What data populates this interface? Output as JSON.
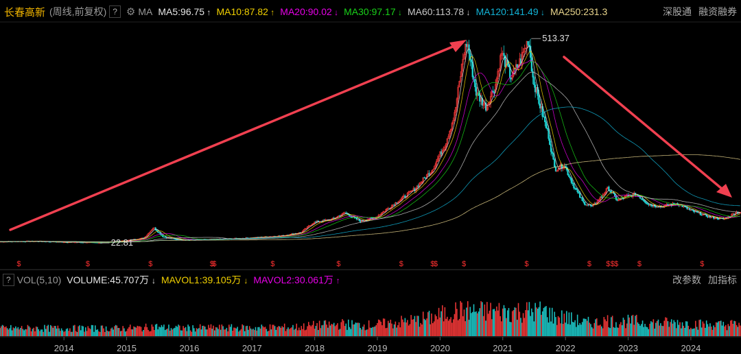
{
  "header": {
    "stock_name": "长春高新",
    "period": "(周线,前复权)",
    "help": "?",
    "ma_label": "MA",
    "ma_values": [
      {
        "label": "MA5:96.75",
        "arrow": "↑",
        "color": "#e6e6e6"
      },
      {
        "label": "MA10:87.82",
        "arrow": "↑",
        "color": "#f2d100"
      },
      {
        "label": "MA20:90.02",
        "arrow": "↓",
        "color": "#e800e8"
      },
      {
        "label": "MA30:97.17",
        "arrow": "↓",
        "color": "#19d219"
      },
      {
        "label": "MA60:113.78",
        "arrow": "↓",
        "color": "#c8c8c8"
      },
      {
        "label": "MA120:141.49",
        "arrow": "↓",
        "color": "#12b3d6"
      },
      {
        "label": "MA250:231.3",
        "arrow": "",
        "color": "#e8d48c"
      }
    ],
    "links": [
      "深股通",
      "融资融券"
    ]
  },
  "volume_header": {
    "help": "?",
    "label": "VOL(5,10)",
    "volume": {
      "label": "VOLUME:45.707万",
      "arrow": "↓",
      "color": "#e6e6e6"
    },
    "mavol1": {
      "label": "MAVOL1:39.105万",
      "arrow": "↓",
      "color": "#f2d100"
    },
    "mavol2": {
      "label": "MAVOL2:30.061万",
      "arrow": "↑",
      "color": "#e800e8"
    },
    "links": [
      "改参数",
      "加指标"
    ]
  },
  "chart_data": {
    "type": "candlestick",
    "x_ticks": [
      "2014",
      "2015",
      "2016",
      "2017",
      "2018",
      "2019",
      "2020",
      "2021",
      "2022",
      "2023",
      "2024"
    ],
    "price_path": [
      [
        2013.0,
        26
      ],
      [
        2013.6,
        27
      ],
      [
        2014.0,
        25
      ],
      [
        2014.6,
        23.5
      ],
      [
        2015.0,
        28
      ],
      [
        2015.3,
        35
      ],
      [
        2015.45,
        60
      ],
      [
        2015.6,
        38
      ],
      [
        2015.8,
        32
      ],
      [
        2016.0,
        30
      ],
      [
        2016.5,
        32
      ],
      [
        2017.0,
        35
      ],
      [
        2017.5,
        40
      ],
      [
        2017.8,
        48
      ],
      [
        2018.0,
        72
      ],
      [
        2018.3,
        80
      ],
      [
        2018.5,
        95
      ],
      [
        2018.75,
        75
      ],
      [
        2019.0,
        85
      ],
      [
        2019.3,
        118
      ],
      [
        2019.6,
        150
      ],
      [
        2019.9,
        200
      ],
      [
        2020.1,
        260
      ],
      [
        2020.25,
        330
      ],
      [
        2020.4,
        480
      ],
      [
        2020.45,
        505
      ],
      [
        2020.6,
        380
      ],
      [
        2020.75,
        350
      ],
      [
        2020.9,
        400
      ],
      [
        2021.0,
        480
      ],
      [
        2021.15,
        420
      ],
      [
        2021.3,
        460
      ],
      [
        2021.43,
        513.37
      ],
      [
        2021.5,
        420
      ],
      [
        2021.6,
        360
      ],
      [
        2021.75,
        280
      ],
      [
        2021.85,
        200
      ],
      [
        2022.0,
        210
      ],
      [
        2022.15,
        160
      ],
      [
        2022.3,
        120
      ],
      [
        2022.45,
        110
      ],
      [
        2022.6,
        135
      ],
      [
        2022.7,
        155
      ],
      [
        2022.85,
        125
      ],
      [
        2023.0,
        135
      ],
      [
        2023.15,
        140
      ],
      [
        2023.35,
        115
      ],
      [
        2023.55,
        110
      ],
      [
        2023.8,
        118
      ],
      [
        2024.0,
        102
      ],
      [
        2024.3,
        86
      ],
      [
        2024.55,
        80
      ],
      [
        2024.75,
        96.75
      ]
    ],
    "annotations": [
      {
        "text": "513.37",
        "x": 2021.43,
        "y": 513.37
      },
      {
        "text": "22.81",
        "x": 2014.55,
        "y": 22.81
      }
    ],
    "marker_symbol": "$",
    "markers": [
      2013.3,
      2014.4,
      2015.4,
      2016.38,
      2016.42,
      2017.35,
      2018.4,
      2019.4,
      2019.9,
      2019.95,
      2020.4,
      2021.4,
      2022.4,
      2022.7,
      2022.77,
      2022.83,
      2023.2,
      2024.2
    ]
  }
}
